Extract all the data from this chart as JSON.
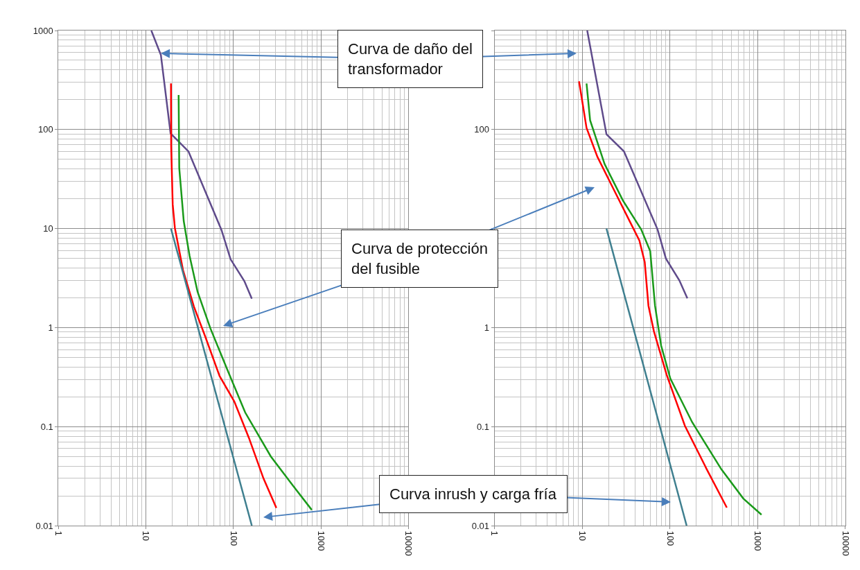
{
  "chart_data": [
    {
      "type": "line",
      "log": "xy",
      "grid": true,
      "marker": "none",
      "line_style": "solid",
      "xlim": [
        1,
        10000
      ],
      "ylim": [
        0.01,
        1000
      ],
      "xticks": [
        1,
        10,
        100,
        1000,
        10000
      ],
      "yticks": [
        0.01,
        0.1,
        1,
        10,
        100,
        1000
      ],
      "series": [
        {
          "color": "#5f4b8b",
          "x": [
            11.5,
            14.8,
            19.1,
            30.6,
            72.8,
            92.6,
            133,
            162
          ],
          "values": [
            1000,
            566,
            91.5,
            60,
            9.7,
            4.9,
            2.95,
            1.96
          ]
        },
        {
          "color": "#ff0000",
          "x": [
            19.3,
            19.4,
            20.2,
            21.4,
            26.5,
            35.3,
            47.2,
            69.3,
            102,
            150,
            220,
            309
          ],
          "values": [
            292,
            68,
            17.5,
            10.1,
            3.8,
            1.63,
            0.826,
            0.325,
            0.18,
            0.077,
            0.03,
            0.0151
          ]
        },
        {
          "color": "#1a9a1a",
          "x": [
            23.6,
            24.0,
            27.0,
            31.5,
            38.9,
            54.5,
            84,
            136,
            267,
            476,
            785
          ],
          "values": [
            223,
            40.8,
            11.9,
            5.3,
            2.29,
            0.98,
            0.386,
            0.139,
            0.05,
            0.0255,
            0.0144
          ]
        },
        {
          "color": "#3f7f8f",
          "x": [
            19.3,
            162
          ],
          "values": [
            10,
            0.01
          ]
        }
      ],
      "annotations": [
        "Curva de daño del\ntransformador",
        "Curva de protección\ndel fusible",
        "Curva inrush y carga fría"
      ]
    },
    {
      "type": "line",
      "log": "xy",
      "grid": true,
      "marker": "none",
      "line_style": "solid",
      "xlim": [
        1,
        10000
      ],
      "ylim": [
        0.01,
        1000
      ],
      "xticks": [
        1,
        10,
        100,
        1000,
        10000
      ],
      "yticks": [
        0.01,
        0.1,
        1,
        {
          "value": 10,
          "label": null
        },
        100,
        {
          "value": 1000,
          "label": null
        }
      ],
      "series": [
        {
          "color": "#5f4b8b",
          "x": [
            11.4,
            18.9,
            29.9,
            72.2,
            90,
            128,
            158
          ],
          "values": [
            1000,
            89.6,
            60.2,
            9.8,
            4.97,
            3.0,
            1.97
          ]
        },
        {
          "color": "#ff0000",
          "x": [
            9.2,
            11.2,
            14.9,
            21.8,
            35.2,
            44.8,
            51.6,
            56.9,
            65.6,
            91.8,
            148,
            263,
            445
          ],
          "values": [
            307,
            104,
            53,
            27,
            11.6,
            7.6,
            4.58,
            1.66,
            0.92,
            0.333,
            0.102,
            0.037,
            0.0152
          ]
        },
        {
          "color": "#1a9a1a",
          "x": [
            11.2,
            12.3,
            18.0,
            29.1,
            47.0,
            59.6,
            67.6,
            79.4,
            101,
            179,
            386,
            685,
            1106
          ],
          "values": [
            292,
            124,
            44.8,
            19.2,
            9.8,
            5.9,
            1.66,
            0.656,
            0.306,
            0.111,
            0.037,
            0.0188,
            0.0129
          ]
        },
        {
          "color": "#3f7f8f",
          "x": [
            18.9,
            155
          ],
          "values": [
            10,
            0.01
          ]
        }
      ]
    }
  ]
}
